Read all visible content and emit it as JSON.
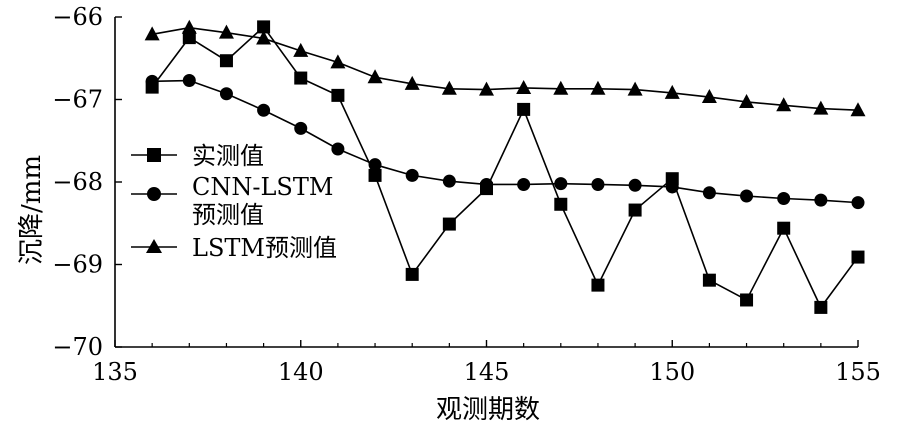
{
  "chart_data": {
    "type": "line",
    "title": "",
    "xlabel": "观测期数",
    "ylabel": "沉降/mm",
    "xlim": [
      135,
      155
    ],
    "ylim": [
      -70,
      -66
    ],
    "xticks": [
      135,
      140,
      145,
      150,
      155
    ],
    "yticks": [
      -66,
      -67,
      -68,
      -69,
      -70
    ],
    "xtick_labels": [
      "135",
      "140",
      "145",
      "150",
      "155"
    ],
    "ytick_labels": [
      "−66",
      "−67",
      "−68",
      "−69",
      "−70"
    ],
    "grid": false,
    "legend_position": "left",
    "x": [
      136,
      137,
      138,
      139,
      140,
      141,
      142,
      143,
      144,
      145,
      146,
      147,
      148,
      149,
      150,
      151,
      152,
      153,
      154,
      155
    ],
    "series": [
      {
        "name": "实测值",
        "marker": "square",
        "values": [
          -66.85,
          -66.25,
          -66.53,
          -66.12,
          -66.74,
          -66.95,
          -67.92,
          -69.12,
          -68.51,
          -68.08,
          -67.12,
          -68.27,
          -69.25,
          -68.34,
          -67.96,
          -69.19,
          -69.43,
          -68.56,
          -69.52,
          -68.91
        ]
      },
      {
        "name": "CNN-LSTM预测值",
        "legend_lines": [
          "CNN-LSTM",
          "预测值"
        ],
        "marker": "circle",
        "values": [
          -66.78,
          -66.77,
          -66.93,
          -67.13,
          -67.35,
          -67.6,
          -67.79,
          -67.92,
          -67.99,
          -68.03,
          -68.03,
          -68.02,
          -68.03,
          -68.04,
          -68.06,
          -68.13,
          -68.17,
          -68.2,
          -68.22,
          -68.25
        ]
      },
      {
        "name": "LSTM预测值",
        "marker": "triangle",
        "values": [
          -66.21,
          -66.13,
          -66.19,
          -66.26,
          -66.41,
          -66.55,
          -66.73,
          -66.81,
          -66.87,
          -66.88,
          -66.86,
          -66.87,
          -66.87,
          -66.88,
          -66.92,
          -66.97,
          -67.03,
          -67.07,
          -67.11,
          -67.13
        ]
      }
    ]
  },
  "style": {
    "line_color": "#000000",
    "background": "#ffffff"
  }
}
